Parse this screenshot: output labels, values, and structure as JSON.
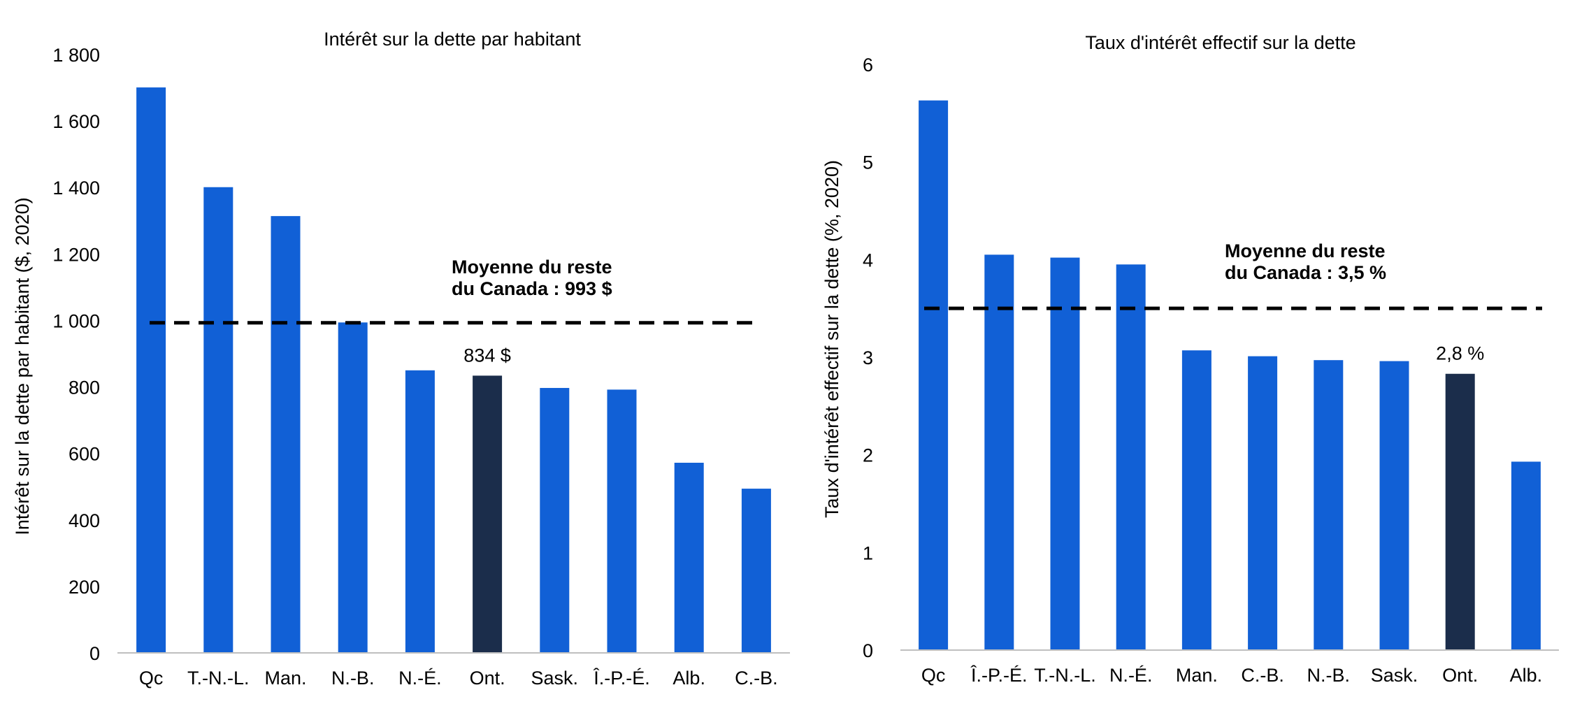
{
  "colors": {
    "bar": "#1160d6",
    "highlight": "#1b2d4b",
    "axis": "#bfbfbf",
    "avg_line": "#000000"
  },
  "chart_data": [
    {
      "type": "bar",
      "title": "Intérêt sur la dette par habitant",
      "xlabel": "",
      "ylabel": "Intérêt sur la dette par habitant ($, 2020)",
      "categories": [
        "Qc",
        "T.-N.-L.",
        "Man.",
        "N.-B.",
        "N.-É.",
        "Ont.",
        "Sask.",
        "Î.-P.-É.",
        "Alb.",
        "C.-B."
      ],
      "values": [
        1701,
        1401,
        1314,
        994,
        850,
        834,
        797,
        792,
        572,
        494
      ],
      "highlight_category": "Ont.",
      "ylim": [
        0,
        1800
      ],
      "yticks": [
        0,
        200,
        400,
        600,
        800,
        1000,
        1200,
        1400,
        1600,
        1800
      ],
      "ytick_labels": [
        "0",
        "200",
        "400",
        "600",
        "800",
        "1 000",
        "1 200",
        "1 400",
        "1 600",
        "1 800"
      ],
      "grid": false,
      "legend": "none",
      "reference_line": {
        "value": 993,
        "style": "dashed",
        "label_line1": "Moyenne du reste",
        "label_line2": "du Canada : 993 $"
      },
      "data_label": {
        "category": "Ont.",
        "text": "834 $"
      }
    },
    {
      "type": "bar",
      "title": "Taux d'intérêt effectif sur la dette",
      "xlabel": "",
      "ylabel": "Taux d'intérêt effectif sur la dette (%, 2020)",
      "categories": [
        "Qc",
        "Î.-P.-É.",
        "T.-N.-L.",
        "N.-É.",
        "Man.",
        "C.-B.",
        "N.-B.",
        "Sask.",
        "Ont.",
        "Alb."
      ],
      "values": [
        5.63,
        4.05,
        4.02,
        3.95,
        3.07,
        3.01,
        2.97,
        2.96,
        2.83,
        1.93
      ],
      "highlight_category": "Ont.",
      "ylim": [
        0,
        6
      ],
      "yticks": [
        0,
        1,
        2,
        3,
        4,
        5,
        6
      ],
      "ytick_labels": [
        "0",
        "1",
        "2",
        "3",
        "4",
        "5",
        "6"
      ],
      "grid": false,
      "legend": "none",
      "reference_line": {
        "value": 3.5,
        "style": "dashed",
        "label_line1": "Moyenne du reste",
        "label_line2": "du Canada : 3,5 %"
      },
      "data_label": {
        "category": "Ont.",
        "text": "2,8 %"
      }
    }
  ]
}
